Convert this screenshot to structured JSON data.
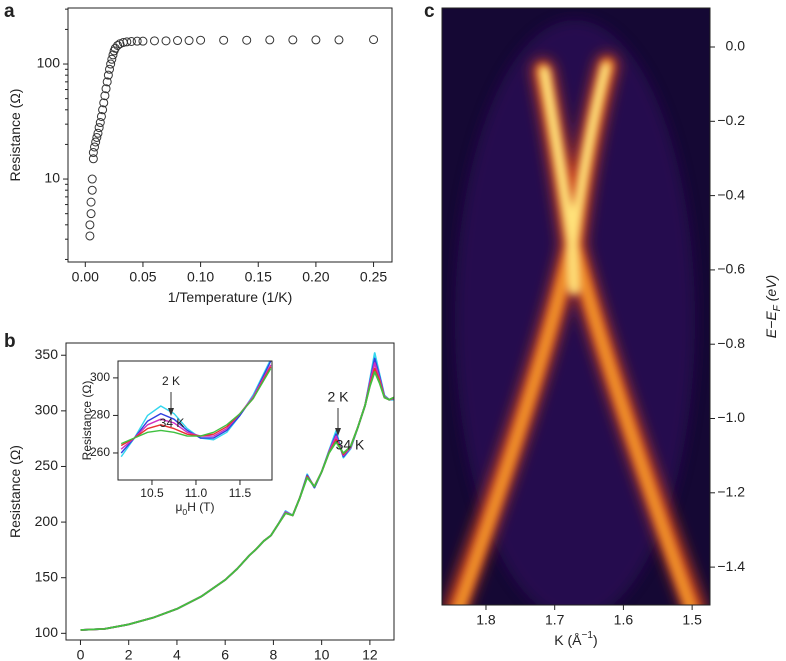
{
  "chart_data": [
    {
      "type": "scatter",
      "panel": "a",
      "xlabel": [
        "1/Temperature (1/K)"
      ],
      "ylabel": [
        "Resistance (Ω)"
      ],
      "log_y": true,
      "color": "#333333",
      "xlim": [
        -0.015,
        0.266
      ],
      "ylim": [
        1.9,
        307
      ],
      "xticks": [
        {
          "value": 0,
          "label": "0.00"
        },
        0.05,
        {
          "value": 0.1,
          "label": "0.10"
        },
        0.15,
        {
          "value": 0.2,
          "label": "0.20"
        },
        0.25
      ],
      "yticks": [
        10,
        100
      ],
      "x": [
        0.004,
        0.004,
        0.005,
        0.005,
        0.006,
        0.006,
        0.007,
        0.007,
        0.008,
        0.009,
        0.01,
        0.011,
        0.012,
        0.013,
        0.014,
        0.015,
        0.016,
        0.017,
        0.018,
        0.019,
        0.02,
        0.021,
        0.022,
        0.023,
        0.024,
        0.025,
        0.026,
        0.028,
        0.03,
        0.033,
        0.036,
        0.04,
        0.045,
        0.05,
        0.06,
        0.07,
        0.08,
        0.09,
        0.1,
        0.12,
        0.14,
        0.16,
        0.18,
        0.2,
        0.22,
        0.25
      ],
      "values": [
        3.2,
        4.0,
        5.0,
        6.3,
        8.0,
        10,
        15,
        17,
        19,
        21,
        23,
        25,
        28,
        31,
        35,
        40,
        46,
        53,
        61,
        70,
        80,
        90,
        100,
        110,
        120,
        130,
        137,
        145,
        150,
        154,
        156,
        157,
        158,
        158,
        159,
        159,
        160,
        160,
        161,
        161,
        161,
        162,
        162,
        162,
        162,
        163
      ]
    },
    {
      "type": "line",
      "panel": "b",
      "xlabel": [
        "μ",
        "0",
        "H (T)"
      ],
      "ylabel": [
        "Resistance (Ω)"
      ],
      "xlim": [
        -0.6,
        13
      ],
      "ylim": [
        94,
        361
      ],
      "xticks": [
        0,
        2,
        4,
        6,
        8,
        10,
        12
      ],
      "yticks": [
        100,
        150,
        200,
        250,
        300,
        350
      ],
      "annotations": [
        "2 K",
        "34 K"
      ],
      "x": [
        0,
        1,
        2,
        3,
        4,
        5,
        6,
        6.5,
        7,
        7.3,
        7.6,
        7.9,
        8.2,
        8.5,
        8.8,
        9.1,
        9.4,
        9.7,
        10.0,
        10.3,
        10.6,
        10.9,
        11.2,
        11.5,
        11.8,
        12.0,
        12.2,
        12.4,
        12.6,
        12.8,
        13
      ],
      "series": [
        {
          "color": "#33d6ee",
          "values": [
            103,
            104,
            108,
            114,
            122,
            133,
            148,
            158,
            170,
            176,
            183,
            188,
            198,
            210,
            206,
            222,
            243,
            231,
            245,
            264,
            282,
            258,
            266,
            285,
            305,
            328,
            352,
            333,
            314,
            310,
            310
          ]
        },
        {
          "color": "#3040e0",
          "values": [
            103,
            104,
            108,
            114,
            122,
            133,
            148,
            158,
            170,
            176,
            183,
            188,
            198,
            209,
            206,
            222,
            242,
            231,
            245,
            263,
            279,
            259,
            267,
            285,
            305,
            326,
            347,
            331,
            313,
            310,
            311
          ]
        },
        {
          "color": "#d030c0",
          "values": [
            103,
            104,
            108,
            114,
            122,
            133,
            148,
            158,
            170,
            176,
            183,
            188,
            198,
            209,
            206,
            222,
            241,
            232,
            245,
            263,
            277,
            260,
            267,
            285,
            305,
            325,
            343,
            329,
            313,
            310,
            311
          ]
        },
        {
          "color": "#e83030",
          "values": [
            103,
            104,
            108,
            114,
            122,
            133,
            148,
            158,
            170,
            176,
            183,
            188,
            198,
            208,
            206,
            222,
            241,
            232,
            245,
            262,
            274,
            261,
            268,
            285,
            305,
            323,
            338,
            327,
            312,
            310,
            312
          ]
        },
        {
          "color": "#40c040",
          "values": [
            103,
            104,
            108,
            114,
            122,
            133,
            148,
            158,
            170,
            176,
            183,
            188,
            198,
            208,
            206,
            222,
            240,
            232,
            245,
            262,
            272,
            262,
            268,
            285,
            305,
            322,
            335,
            325,
            312,
            310,
            312
          ]
        }
      ]
    },
    {
      "type": "line",
      "panel_inset": true,
      "xlabel": [
        "μ",
        "0",
        "H (T)"
      ],
      "ylabel": [
        "Resistance (Ω)"
      ],
      "xlim": [
        10.114,
        11.864
      ],
      "ylim": [
        245.6,
        309
      ],
      "xticks": [
        10.5,
        {
          "value": 11,
          "label": "11.0"
        },
        11.5
      ],
      "yticks": [
        260,
        280,
        300
      ],
      "annotations": [
        "2 K",
        "34 K"
      ],
      "x": [
        10.15,
        10.3,
        10.45,
        10.6,
        10.75,
        10.9,
        11.05,
        11.2,
        11.35,
        11.5,
        11.65,
        11.85
      ],
      "series": [
        {
          "color": "#33d6ee",
          "values": [
            258,
            268,
            280,
            285,
            281,
            273,
            268,
            267,
            271,
            280,
            291,
            310
          ]
        },
        {
          "color": "#3040e0",
          "values": [
            260,
            268,
            277,
            281,
            278,
            272,
            268,
            268,
            272,
            280,
            290,
            309
          ]
        },
        {
          "color": "#d030c0",
          "values": [
            262,
            268,
            275,
            278,
            276,
            271,
            269,
            269,
            273,
            281,
            290,
            307
          ]
        },
        {
          "color": "#e83030",
          "values": [
            264,
            268,
            273,
            275,
            273,
            270,
            269,
            270,
            274,
            281,
            289,
            306
          ]
        },
        {
          "color": "#40c040",
          "values": [
            265,
            268,
            271,
            272,
            271,
            269,
            269,
            271,
            275,
            281,
            289,
            305
          ]
        }
      ]
    },
    {
      "type": "image",
      "panel": "c",
      "xlabel": [
        "K (Å",
        "−1",
        ")"
      ],
      "ylabel": [
        "E−E",
        "F",
        " (eV)"
      ],
      "xlim": [
        1.864,
        1.474
      ],
      "ylim": [
        -1.502,
        0.105
      ],
      "xticks": [
        1.8,
        1.7,
        1.6,
        1.5
      ],
      "yticks": [
        {
          "value": 0,
          "label": "0.0"
        },
        {
          "value": -0.2,
          "label": "−0.2"
        },
        {
          "value": -0.4,
          "label": "−0.4"
        },
        {
          "value": -0.6,
          "label": "−0.6"
        },
        {
          "value": -0.8,
          "label": "−0.8"
        },
        {
          "value": -1,
          "label": "−1.0"
        },
        {
          "value": -1.2,
          "label": "−1.2"
        },
        {
          "value": -1.4,
          "label": "−1.4"
        }
      ]
    }
  ]
}
